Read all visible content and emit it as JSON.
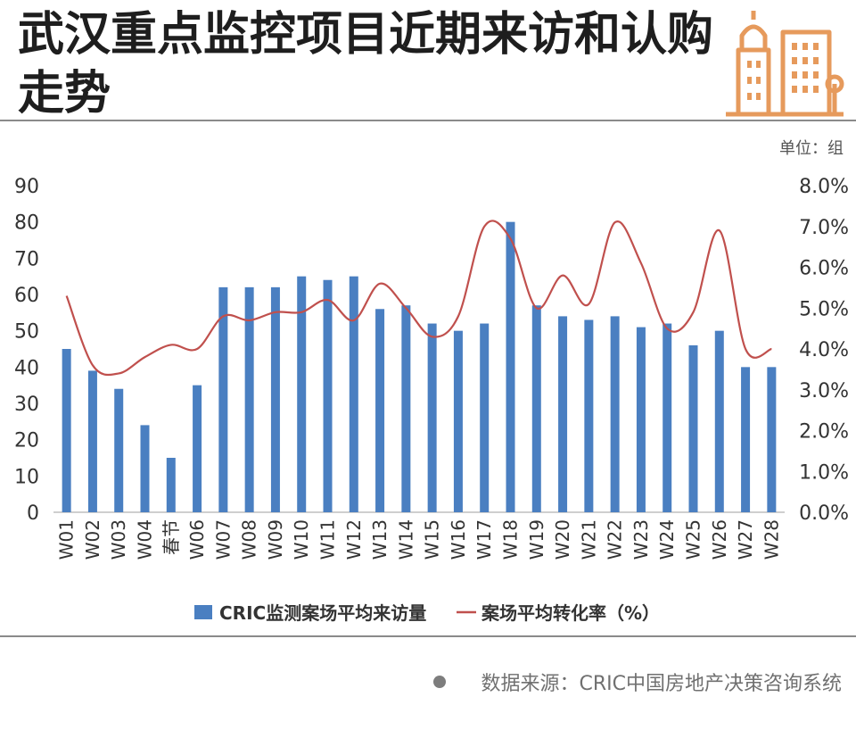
{
  "title": "武汉重点监控项目近期来访和认购走势",
  "source": "数据来源：CRIC中国房地产决策咨询系统",
  "icons": [
    "building-logo-icon",
    "bullet-dot-icon"
  ],
  "colors": {
    "bars": "#4a7fc1",
    "line": "#c0504d",
    "logo": "#e69a5c"
  },
  "chart_data": {
    "type": "bar",
    "unit_label": "单位：组",
    "categories": [
      "W01",
      "W02",
      "W03",
      "W04",
      "春节",
      "W06",
      "W07",
      "W08",
      "W09",
      "W10",
      "W11",
      "W12",
      "W13",
      "W14",
      "W15",
      "W16",
      "W17",
      "W18",
      "W19",
      "W20",
      "W21",
      "W22",
      "W23",
      "W24",
      "W25",
      "W26",
      "W27",
      "W28"
    ],
    "series": [
      {
        "name": "CRIC监测案场平均来访量",
        "type": "bar",
        "axis": "left",
        "values": [
          45,
          39,
          34,
          24,
          15,
          35,
          62,
          62,
          62,
          65,
          64,
          65,
          56,
          57,
          52,
          50,
          52,
          80,
          57,
          54,
          53,
          54,
          51,
          52,
          46,
          50,
          40,
          40
        ]
      },
      {
        "name": "案场平均转化率（%）",
        "type": "line",
        "axis": "right",
        "values": [
          5.3,
          3.6,
          3.4,
          3.8,
          4.1,
          4.0,
          4.8,
          4.7,
          4.9,
          4.9,
          5.2,
          4.7,
          5.6,
          5.0,
          4.3,
          4.8,
          7.0,
          6.7,
          5.0,
          5.8,
          5.1,
          7.1,
          6.1,
          4.5,
          4.9,
          6.9,
          4.0,
          4.0
        ]
      }
    ],
    "y_left": {
      "min": 0,
      "max": 90,
      "ticks": [
        0,
        10,
        20,
        30,
        40,
        50,
        60,
        70,
        80,
        90
      ]
    },
    "y_right": {
      "min": 0,
      "max": 8,
      "ticks": [
        "0.0%",
        "1.0%",
        "2.0%",
        "3.0%",
        "4.0%",
        "5.0%",
        "6.0%",
        "7.0%",
        "8.0%"
      ]
    },
    "grid": false,
    "legend": "bottom"
  }
}
